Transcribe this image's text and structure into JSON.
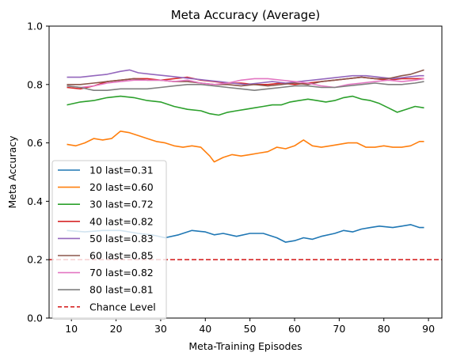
{
  "chart_data": {
    "type": "line",
    "title": "Meta Accuracy (Average)",
    "xlabel": "Meta-Training Episodes",
    "ylabel": "Meta Accuracy",
    "xlim": [
      5,
      93
    ],
    "ylim": [
      0.0,
      1.0
    ],
    "xticks": [
      "10",
      "20",
      "30",
      "40",
      "50",
      "60",
      "70",
      "80",
      "90"
    ],
    "yticks": [
      "0.0",
      "0.2",
      "0.4",
      "0.6",
      "0.8",
      "1.0"
    ],
    "grid": false,
    "legend_position": "lower left",
    "chance_level": {
      "label": "Chance Level",
      "y": 0.2,
      "color": "#d62728"
    },
    "series": [
      {
        "name": "10 last=0.31",
        "color": "#1f77b4",
        "points": [
          [
            9,
            0.3
          ],
          [
            13,
            0.295
          ],
          [
            17,
            0.3
          ],
          [
            21,
            0.3
          ],
          [
            25,
            0.29
          ],
          [
            28,
            0.285
          ],
          [
            31,
            0.275
          ],
          [
            34,
            0.285
          ],
          [
            37,
            0.3
          ],
          [
            40,
            0.295
          ],
          [
            42,
            0.285
          ],
          [
            44,
            0.29
          ],
          [
            47,
            0.28
          ],
          [
            50,
            0.29
          ],
          [
            53,
            0.29
          ],
          [
            56,
            0.275
          ],
          [
            58,
            0.26
          ],
          [
            60,
            0.265
          ],
          [
            62,
            0.275
          ],
          [
            64,
            0.27
          ],
          [
            66,
            0.28
          ],
          [
            69,
            0.29
          ],
          [
            71,
            0.3
          ],
          [
            73,
            0.295
          ],
          [
            75,
            0.305
          ],
          [
            77,
            0.31
          ],
          [
            79,
            0.315
          ],
          [
            82,
            0.31
          ],
          [
            84,
            0.315
          ],
          [
            86,
            0.32
          ],
          [
            88,
            0.31
          ],
          [
            89,
            0.31
          ]
        ]
      },
      {
        "name": "20 last=0.60",
        "color": "#ff7f0e",
        "points": [
          [
            9,
            0.595
          ],
          [
            11,
            0.59
          ],
          [
            13,
            0.6
          ],
          [
            15,
            0.615
          ],
          [
            17,
            0.61
          ],
          [
            19,
            0.615
          ],
          [
            21,
            0.64
          ],
          [
            23,
            0.635
          ],
          [
            25,
            0.625
          ],
          [
            27,
            0.615
          ],
          [
            29,
            0.605
          ],
          [
            31,
            0.6
          ],
          [
            33,
            0.59
          ],
          [
            35,
            0.585
          ],
          [
            37,
            0.59
          ],
          [
            39,
            0.585
          ],
          [
            41,
            0.555
          ],
          [
            42,
            0.535
          ],
          [
            44,
            0.55
          ],
          [
            46,
            0.56
          ],
          [
            48,
            0.555
          ],
          [
            50,
            0.56
          ],
          [
            52,
            0.565
          ],
          [
            54,
            0.57
          ],
          [
            56,
            0.585
          ],
          [
            58,
            0.58
          ],
          [
            60,
            0.59
          ],
          [
            62,
            0.61
          ],
          [
            64,
            0.59
          ],
          [
            66,
            0.585
          ],
          [
            68,
            0.59
          ],
          [
            70,
            0.595
          ],
          [
            72,
            0.6
          ],
          [
            74,
            0.6
          ],
          [
            76,
            0.585
          ],
          [
            78,
            0.585
          ],
          [
            80,
            0.59
          ],
          [
            82,
            0.585
          ],
          [
            84,
            0.585
          ],
          [
            86,
            0.59
          ],
          [
            88,
            0.605
          ],
          [
            89,
            0.605
          ]
        ]
      },
      {
        "name": "30 last=0.72",
        "color": "#2ca02c",
        "points": [
          [
            9,
            0.73
          ],
          [
            12,
            0.74
          ],
          [
            15,
            0.745
          ],
          [
            18,
            0.755
          ],
          [
            21,
            0.76
          ],
          [
            24,
            0.755
          ],
          [
            27,
            0.745
          ],
          [
            30,
            0.74
          ],
          [
            33,
            0.725
          ],
          [
            36,
            0.715
          ],
          [
            39,
            0.71
          ],
          [
            41,
            0.7
          ],
          [
            43,
            0.695
          ],
          [
            45,
            0.705
          ],
          [
            47,
            0.71
          ],
          [
            49,
            0.715
          ],
          [
            51,
            0.72
          ],
          [
            53,
            0.725
          ],
          [
            55,
            0.73
          ],
          [
            57,
            0.73
          ],
          [
            59,
            0.74
          ],
          [
            61,
            0.745
          ],
          [
            63,
            0.75
          ],
          [
            65,
            0.745
          ],
          [
            67,
            0.74
          ],
          [
            69,
            0.745
          ],
          [
            71,
            0.755
          ],
          [
            73,
            0.76
          ],
          [
            75,
            0.75
          ],
          [
            77,
            0.745
          ],
          [
            79,
            0.735
          ],
          [
            81,
            0.72
          ],
          [
            83,
            0.705
          ],
          [
            85,
            0.715
          ],
          [
            87,
            0.725
          ],
          [
            89,
            0.72
          ]
        ]
      },
      {
        "name": "40 last=0.82",
        "color": "#d62728",
        "points": [
          [
            9,
            0.79
          ],
          [
            12,
            0.785
          ],
          [
            15,
            0.795
          ],
          [
            18,
            0.81
          ],
          [
            21,
            0.815
          ],
          [
            24,
            0.82
          ],
          [
            27,
            0.82
          ],
          [
            30,
            0.815
          ],
          [
            33,
            0.82
          ],
          [
            36,
            0.825
          ],
          [
            39,
            0.815
          ],
          [
            42,
            0.81
          ],
          [
            45,
            0.805
          ],
          [
            48,
            0.805
          ],
          [
            51,
            0.8
          ],
          [
            54,
            0.8
          ],
          [
            57,
            0.805
          ],
          [
            60,
            0.8
          ],
          [
            63,
            0.805
          ],
          [
            66,
            0.81
          ],
          [
            69,
            0.815
          ],
          [
            72,
            0.82
          ],
          [
            75,
            0.825
          ],
          [
            78,
            0.82
          ],
          [
            81,
            0.815
          ],
          [
            84,
            0.82
          ],
          [
            87,
            0.82
          ],
          [
            89,
            0.82
          ]
        ]
      },
      {
        "name": "50 last=0.83",
        "color": "#9467bd",
        "points": [
          [
            9,
            0.825
          ],
          [
            12,
            0.825
          ],
          [
            15,
            0.83
          ],
          [
            18,
            0.835
          ],
          [
            21,
            0.845
          ],
          [
            23,
            0.85
          ],
          [
            25,
            0.84
          ],
          [
            28,
            0.835
          ],
          [
            31,
            0.83
          ],
          [
            34,
            0.825
          ],
          [
            37,
            0.82
          ],
          [
            40,
            0.815
          ],
          [
            43,
            0.81
          ],
          [
            46,
            0.805
          ],
          [
            49,
            0.8
          ],
          [
            52,
            0.805
          ],
          [
            55,
            0.81
          ],
          [
            58,
            0.805
          ],
          [
            61,
            0.81
          ],
          [
            64,
            0.815
          ],
          [
            67,
            0.82
          ],
          [
            70,
            0.825
          ],
          [
            73,
            0.83
          ],
          [
            76,
            0.83
          ],
          [
            79,
            0.825
          ],
          [
            82,
            0.82
          ],
          [
            85,
            0.825
          ],
          [
            88,
            0.83
          ],
          [
            89,
            0.83
          ]
        ]
      },
      {
        "name": "60 last=0.85",
        "color": "#8c564b",
        "points": [
          [
            9,
            0.8
          ],
          [
            12,
            0.8
          ],
          [
            15,
            0.805
          ],
          [
            18,
            0.81
          ],
          [
            21,
            0.815
          ],
          [
            24,
            0.82
          ],
          [
            27,
            0.815
          ],
          [
            30,
            0.815
          ],
          [
            33,
            0.81
          ],
          [
            36,
            0.81
          ],
          [
            39,
            0.805
          ],
          [
            42,
            0.8
          ],
          [
            45,
            0.8
          ],
          [
            48,
            0.795
          ],
          [
            51,
            0.8
          ],
          [
            54,
            0.795
          ],
          [
            57,
            0.8
          ],
          [
            60,
            0.805
          ],
          [
            63,
            0.8
          ],
          [
            66,
            0.81
          ],
          [
            69,
            0.815
          ],
          [
            72,
            0.82
          ],
          [
            75,
            0.825
          ],
          [
            78,
            0.82
          ],
          [
            81,
            0.82
          ],
          [
            84,
            0.83
          ],
          [
            86,
            0.835
          ],
          [
            88,
            0.845
          ],
          [
            89,
            0.85
          ]
        ]
      },
      {
        "name": "70 last=0.82",
        "color": "#e377c2",
        "points": [
          [
            9,
            0.795
          ],
          [
            12,
            0.79
          ],
          [
            15,
            0.795
          ],
          [
            18,
            0.805
          ],
          [
            21,
            0.81
          ],
          [
            24,
            0.815
          ],
          [
            27,
            0.815
          ],
          [
            30,
            0.815
          ],
          [
            33,
            0.81
          ],
          [
            36,
            0.815
          ],
          [
            39,
            0.805
          ],
          [
            42,
            0.8
          ],
          [
            45,
            0.805
          ],
          [
            48,
            0.815
          ],
          [
            51,
            0.82
          ],
          [
            54,
            0.82
          ],
          [
            57,
            0.815
          ],
          [
            60,
            0.81
          ],
          [
            63,
            0.805
          ],
          [
            66,
            0.795
          ],
          [
            69,
            0.79
          ],
          [
            72,
            0.8
          ],
          [
            75,
            0.805
          ],
          [
            78,
            0.81
          ],
          [
            81,
            0.815
          ],
          [
            84,
            0.81
          ],
          [
            87,
            0.815
          ],
          [
            89,
            0.82
          ]
        ]
      },
      {
        "name": "80 last=0.81",
        "color": "#7f7f7f",
        "points": [
          [
            9,
            0.795
          ],
          [
            12,
            0.79
          ],
          [
            15,
            0.78
          ],
          [
            18,
            0.78
          ],
          [
            21,
            0.785
          ],
          [
            24,
            0.785
          ],
          [
            27,
            0.785
          ],
          [
            30,
            0.79
          ],
          [
            33,
            0.795
          ],
          [
            36,
            0.8
          ],
          [
            39,
            0.8
          ],
          [
            42,
            0.795
          ],
          [
            45,
            0.79
          ],
          [
            48,
            0.785
          ],
          [
            51,
            0.78
          ],
          [
            54,
            0.785
          ],
          [
            57,
            0.79
          ],
          [
            60,
            0.795
          ],
          [
            63,
            0.795
          ],
          [
            66,
            0.79
          ],
          [
            69,
            0.79
          ],
          [
            72,
            0.795
          ],
          [
            75,
            0.8
          ],
          [
            78,
            0.805
          ],
          [
            81,
            0.8
          ],
          [
            84,
            0.8
          ],
          [
            87,
            0.805
          ],
          [
            89,
            0.81
          ]
        ]
      }
    ]
  }
}
